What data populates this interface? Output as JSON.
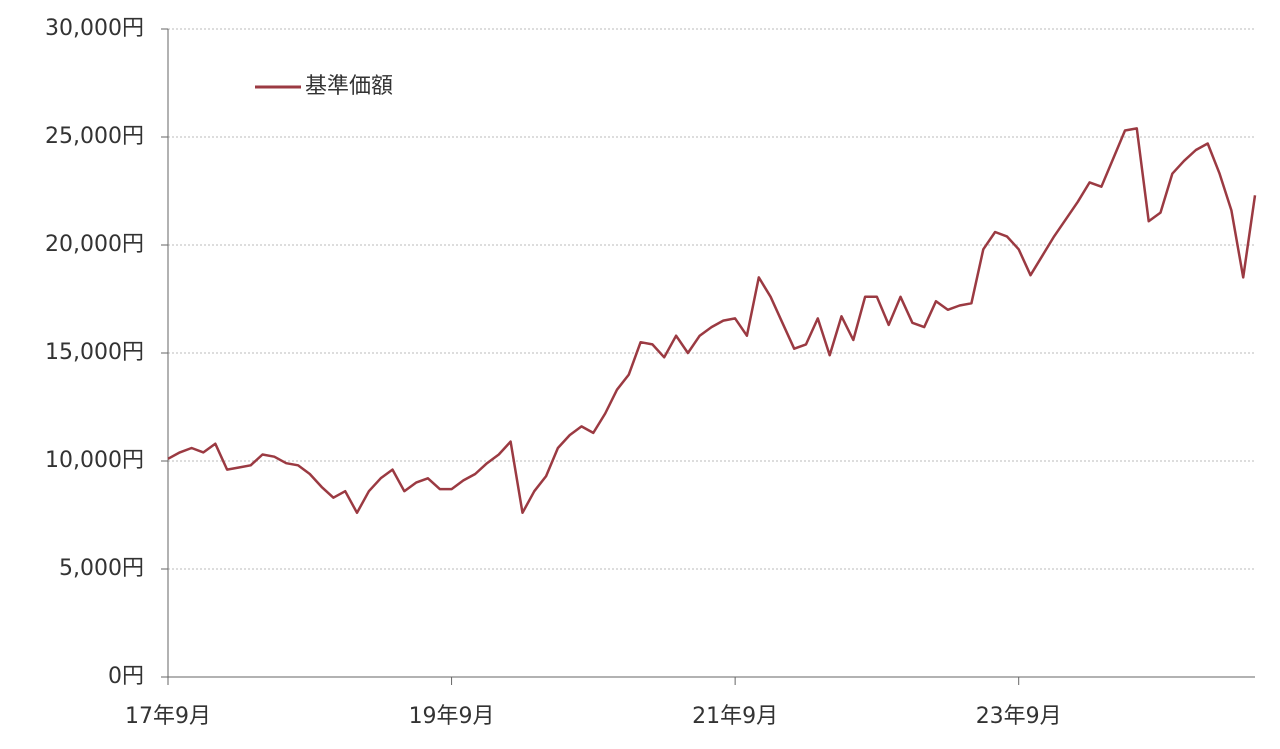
{
  "chart_data": {
    "type": "line",
    "categories": [
      "17年9月",
      null,
      null,
      null,
      null,
      null,
      null,
      null,
      null,
      null,
      null,
      null,
      null,
      null,
      null,
      null,
      null,
      null,
      null,
      null,
      null,
      null,
      null,
      null,
      "19年9月",
      null,
      null,
      null,
      null,
      null,
      null,
      null,
      null,
      null,
      null,
      null,
      null,
      null,
      null,
      null,
      null,
      null,
      null,
      null,
      null,
      null,
      null,
      null,
      "21年9月",
      null,
      null,
      null,
      null,
      null,
      null,
      null,
      null,
      null,
      null,
      null,
      null,
      null,
      null,
      null,
      null,
      null,
      null,
      null,
      null,
      null,
      null,
      null,
      "23年9月",
      null,
      null,
      null,
      null,
      null,
      null,
      null,
      null,
      null,
      null,
      null,
      null,
      null,
      null,
      null,
      null,
      null,
      null,
      null,
      null
    ],
    "series": [
      {
        "name": "基準価額",
        "color": "#9b3a42",
        "values": [
          10100,
          10400,
          10600,
          10400,
          10800,
          9600,
          9700,
          9800,
          10300,
          10200,
          9900,
          9800,
          9400,
          8800,
          8300,
          8600,
          7600,
          8600,
          9200,
          9600,
          8600,
          9000,
          9200,
          8700,
          8700,
          9100,
          9400,
          9900,
          10300,
          10900,
          7600,
          8600,
          9300,
          10600,
          11200,
          11600,
          11300,
          12200,
          13300,
          14000,
          15500,
          15400,
          14800,
          15800,
          15000,
          15800,
          16200,
          16500,
          16600,
          15800,
          18500,
          17600,
          16400,
          15200,
          15400,
          16600,
          14900,
          16700,
          15600,
          17600,
          17600,
          16300,
          17600,
          16400,
          16200,
          17400,
          17000,
          17200,
          17300,
          19800,
          20600,
          20400,
          19800,
          18600,
          19500,
          20400,
          21200,
          22000,
          22900,
          22700,
          24000,
          25300,
          25400,
          21100,
          21500,
          23300,
          23900,
          24400,
          24700,
          23300,
          21600,
          18500,
          22300
        ]
      }
    ],
    "ylim": [
      0,
      30000
    ],
    "yticks": [
      {
        "value": 0,
        "label": "0円"
      },
      {
        "value": 5000,
        "label": "5,000円"
      },
      {
        "value": 10000,
        "label": "10,000円"
      },
      {
        "value": 15000,
        "label": "15,000円"
      },
      {
        "value": 20000,
        "label": "20,000円"
      },
      {
        "value": 25000,
        "label": "25,000円"
      },
      {
        "value": 30000,
        "label": "30,000円"
      }
    ],
    "grid": true,
    "legend": "top-left"
  }
}
